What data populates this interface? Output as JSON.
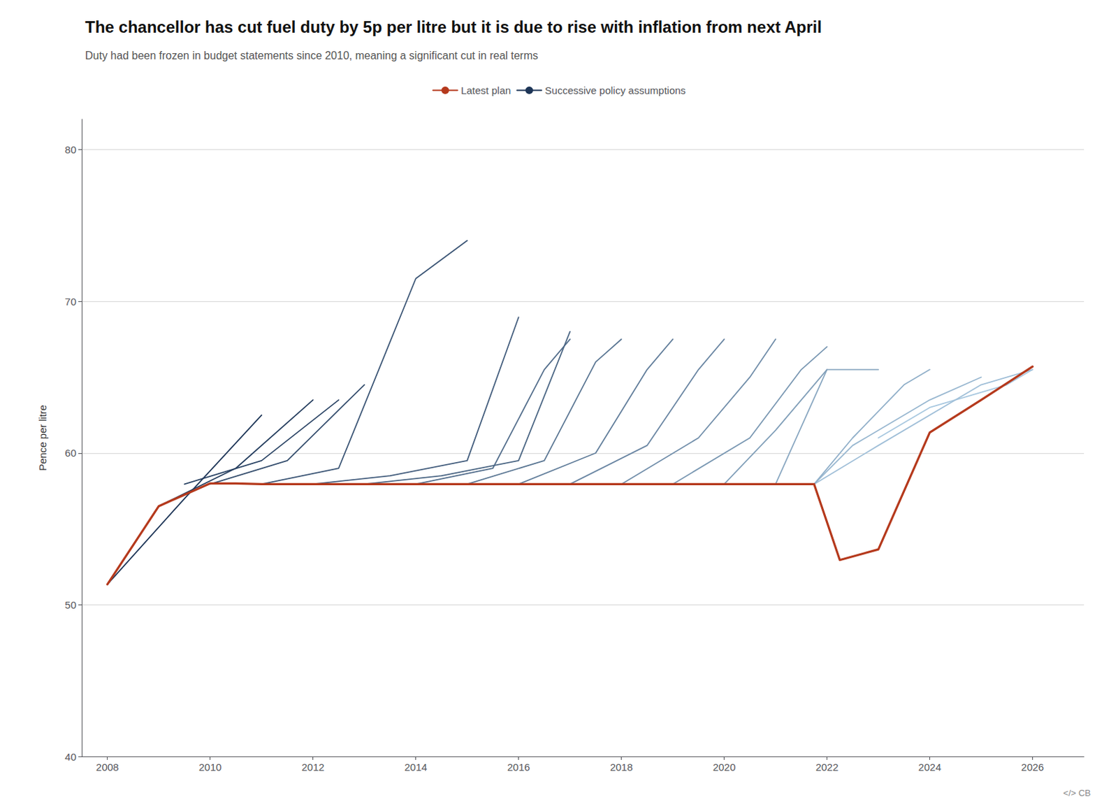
{
  "chart_data": {
    "type": "line",
    "title": "The chancellor has cut fuel duty by 5p per litre but it is due to rise with inflation from next April",
    "subtitle": "Duty had been frozen in budget statements since 2010, meaning a significant cut in real terms",
    "ylabel": "Pence per litre",
    "xlim": [
      2007.5,
      2027.0
    ],
    "ylim": [
      40,
      82
    ],
    "xticks": [
      2008,
      2010,
      2012,
      2014,
      2016,
      2018,
      2020,
      2022,
      2024,
      2026
    ],
    "yticks": [
      40,
      50,
      60,
      70,
      80
    ],
    "grid": true,
    "legend": "top",
    "annotations": [
      {
        "text": "</> CB"
      }
    ],
    "series": [
      {
        "name": "Latest plan",
        "color": "#b5391c",
        "x": [
          2008,
          2009,
          2010,
          2010.5,
          2011,
          2012,
          2013,
          2014,
          2015,
          2016,
          2017,
          2018,
          2019,
          2020,
          2021,
          2021.75,
          2022.25,
          2023,
          2024,
          2025,
          2026
        ],
        "values": [
          51.35,
          56.5,
          58.0,
          58.0,
          57.95,
          57.95,
          57.95,
          57.95,
          57.95,
          57.95,
          57.95,
          57.95,
          57.95,
          57.95,
          57.95,
          57.95,
          52.95,
          53.65,
          61.35,
          63.5,
          65.7
        ]
      },
      {
        "name": "Successive policy assumptions",
        "color": "#1d3557",
        "x": [
          2008.0,
          2009.5,
          2011.0
        ],
        "values": [
          51.35,
          57.0,
          62.5
        ]
      },
      {
        "name": "Successive policy assumptions",
        "color": "#243d5e",
        "x": [
          2009.0,
          2010.5,
          2012.0
        ],
        "values": [
          56.5,
          59.0,
          63.5
        ]
      },
      {
        "name": "Successive policy assumptions",
        "color": "#2c4566",
        "x": [
          2009.5,
          2011.0,
          2012.5
        ],
        "values": [
          57.95,
          59.5,
          63.5
        ]
      },
      {
        "name": "Successive policy assumptions",
        "color": "#344d6d",
        "x": [
          2010.0,
          2011.5,
          2013.0
        ],
        "values": [
          57.95,
          59.5,
          64.5
        ]
      },
      {
        "name": "Successive policy assumptions",
        "color": "#3b5575",
        "x": [
          2011.0,
          2012.5,
          2014.0,
          2015.0
        ],
        "values": [
          57.95,
          59.0,
          71.5,
          74.0
        ]
      },
      {
        "name": "Successive policy assumptions",
        "color": "#435d7d",
        "x": [
          2012.0,
          2013.5,
          2015.0,
          2016.0
        ],
        "values": [
          57.95,
          58.5,
          59.5,
          68.95
        ]
      },
      {
        "name": "Successive policy assumptions",
        "color": "#4b6684",
        "x": [
          2013.0,
          2014.5,
          2016.0,
          2017.0
        ],
        "values": [
          57.95,
          58.5,
          59.5,
          68.0
        ]
      },
      {
        "name": "Successive policy assumptions",
        "color": "#536e8c",
        "x": [
          2014.0,
          2015.5,
          2016.5,
          2017.0
        ],
        "values": [
          57.95,
          59.0,
          65.5,
          67.5
        ]
      },
      {
        "name": "Successive policy assumptions",
        "color": "#5a7693",
        "x": [
          2015.0,
          2016.5,
          2017.5,
          2018.0
        ],
        "values": [
          57.95,
          59.5,
          66.0,
          67.5
        ]
      },
      {
        "name": "Successive policy assumptions",
        "color": "#627e9b",
        "x": [
          2016.0,
          2017.5,
          2018.5,
          2019.0
        ],
        "values": [
          57.95,
          60.0,
          65.5,
          67.5
        ]
      },
      {
        "name": "Successive policy assumptions",
        "color": "#6a86a3",
        "x": [
          2017.0,
          2018.5,
          2019.5,
          2020.0
        ],
        "values": [
          57.95,
          60.5,
          65.5,
          67.5
        ]
      },
      {
        "name": "Successive policy assumptions",
        "color": "#718eaa",
        "x": [
          2018.0,
          2019.5,
          2020.5,
          2021.0
        ],
        "values": [
          57.95,
          61.0,
          65.0,
          67.5
        ]
      },
      {
        "name": "Successive policy assumptions",
        "color": "#7997b2",
        "x": [
          2019.0,
          2020.5,
          2021.5,
          2022.0
        ],
        "values": [
          57.95,
          61.0,
          65.5,
          67.0
        ]
      },
      {
        "name": "Successive policy assumptions",
        "color": "#819fb9",
        "x": [
          2020.0,
          2021.0,
          2022.0
        ],
        "values": [
          57.95,
          61.5,
          65.5
        ]
      },
      {
        "name": "Successive policy assumptions",
        "color": "#89a7c1",
        "x": [
          2021.0,
          2022.0,
          2023.0
        ],
        "values": [
          57.95,
          65.5,
          65.5
        ]
      },
      {
        "name": "Successive policy assumptions",
        "color": "#90afc9",
        "x": [
          2021.75,
          2022.5,
          2023.5,
          2024.0
        ],
        "values": [
          57.95,
          61.0,
          64.5,
          65.5
        ]
      },
      {
        "name": "Successive policy assumptions",
        "color": "#98b7d0",
        "x": [
          2021.75,
          2022.5,
          2024.0,
          2025.0
        ],
        "values": [
          57.95,
          60.5,
          63.5,
          65.0
        ]
      },
      {
        "name": "Successive policy assumptions",
        "color": "#a0bfd8",
        "x": [
          2021.75,
          2023.0,
          2025.0,
          2026.0
        ],
        "values": [
          57.95,
          60.5,
          64.5,
          65.5
        ]
      },
      {
        "name": "Successive policy assumptions",
        "color": "#a8c8e0",
        "x": [
          2023.0,
          2024.0,
          2025.5,
          2026.0
        ],
        "values": [
          61.0,
          63.0,
          64.5,
          65.5
        ]
      }
    ]
  }
}
